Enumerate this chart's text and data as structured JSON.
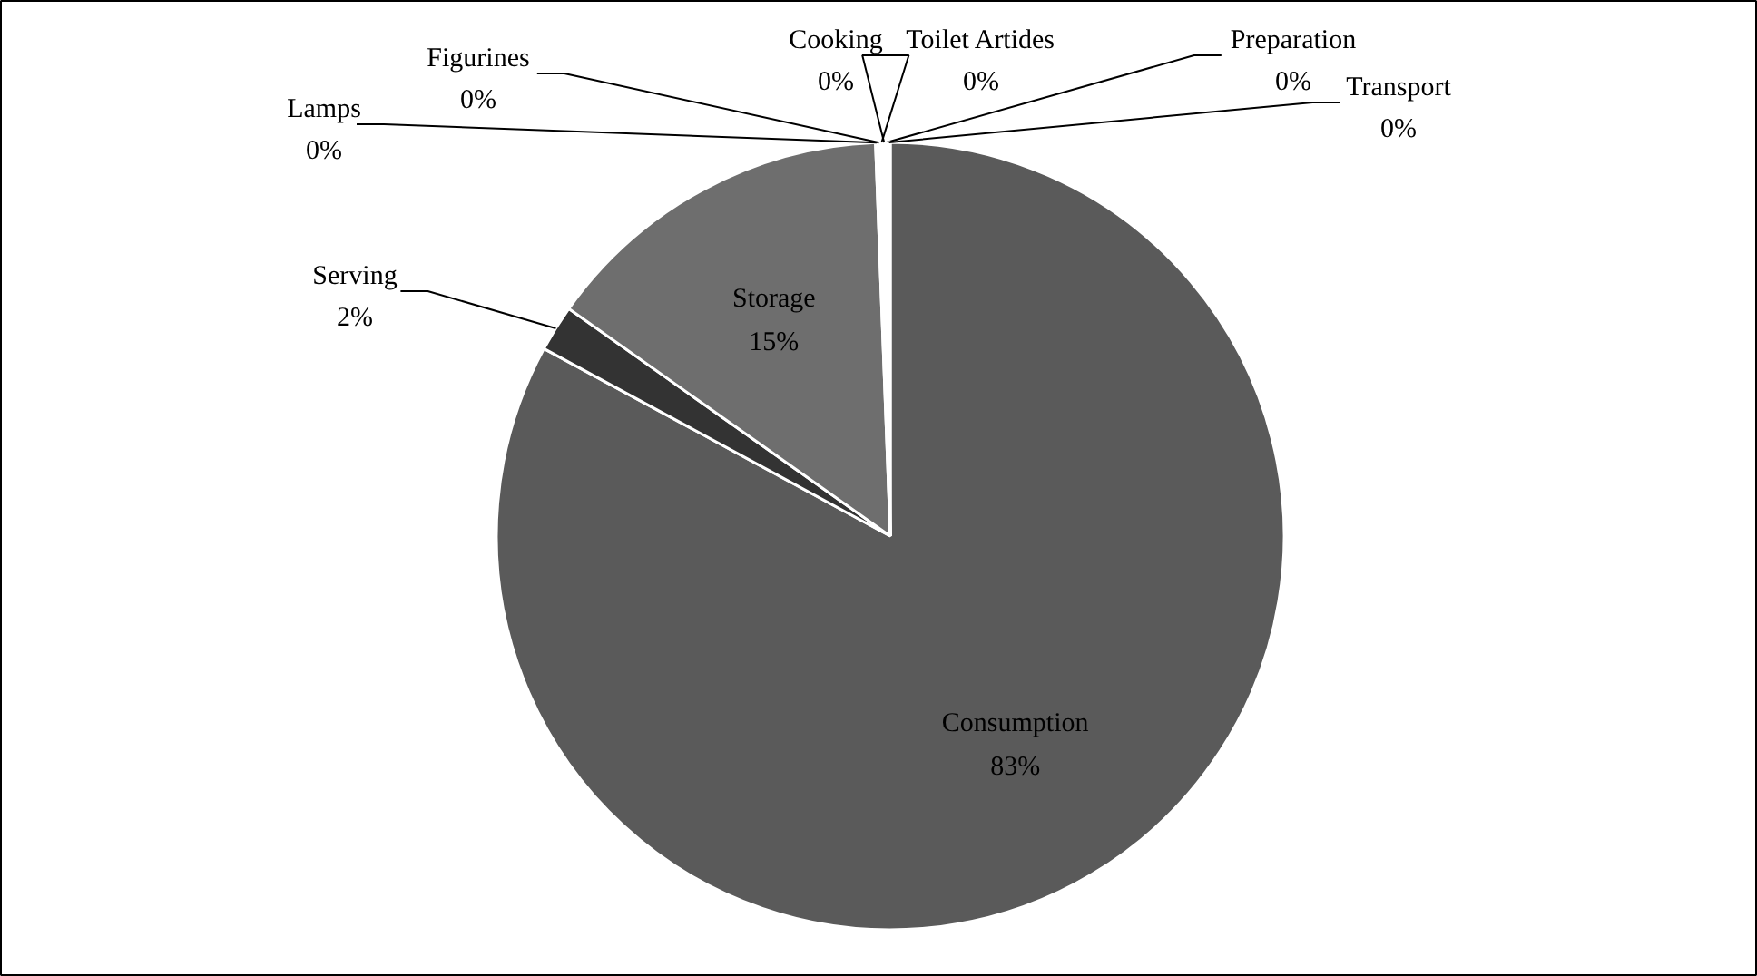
{
  "chart_data": {
    "type": "pie",
    "categories": [
      "Consumption",
      "Serving",
      "Storage",
      "Lamps",
      "Figurines",
      "Cooking",
      "Toilet Artides",
      "Preparation",
      "Transport"
    ],
    "values": [
      82.9,
      1.9,
      14.6,
      0.1,
      0.1,
      0.1,
      0.1,
      0.1,
      0.1
    ],
    "value_labels": [
      "83%",
      "2%",
      "15%",
      "0%",
      "0%",
      "0%",
      "0%",
      "0%",
      "0%"
    ],
    "colors": [
      "#5a5a5a",
      "#333333",
      "#6e6e6e",
      "#d0d0d0",
      "#e0e0e0",
      "#c8c8c8",
      "#e8e8e8",
      "#d8d8d8",
      "#f0f0f0"
    ]
  }
}
